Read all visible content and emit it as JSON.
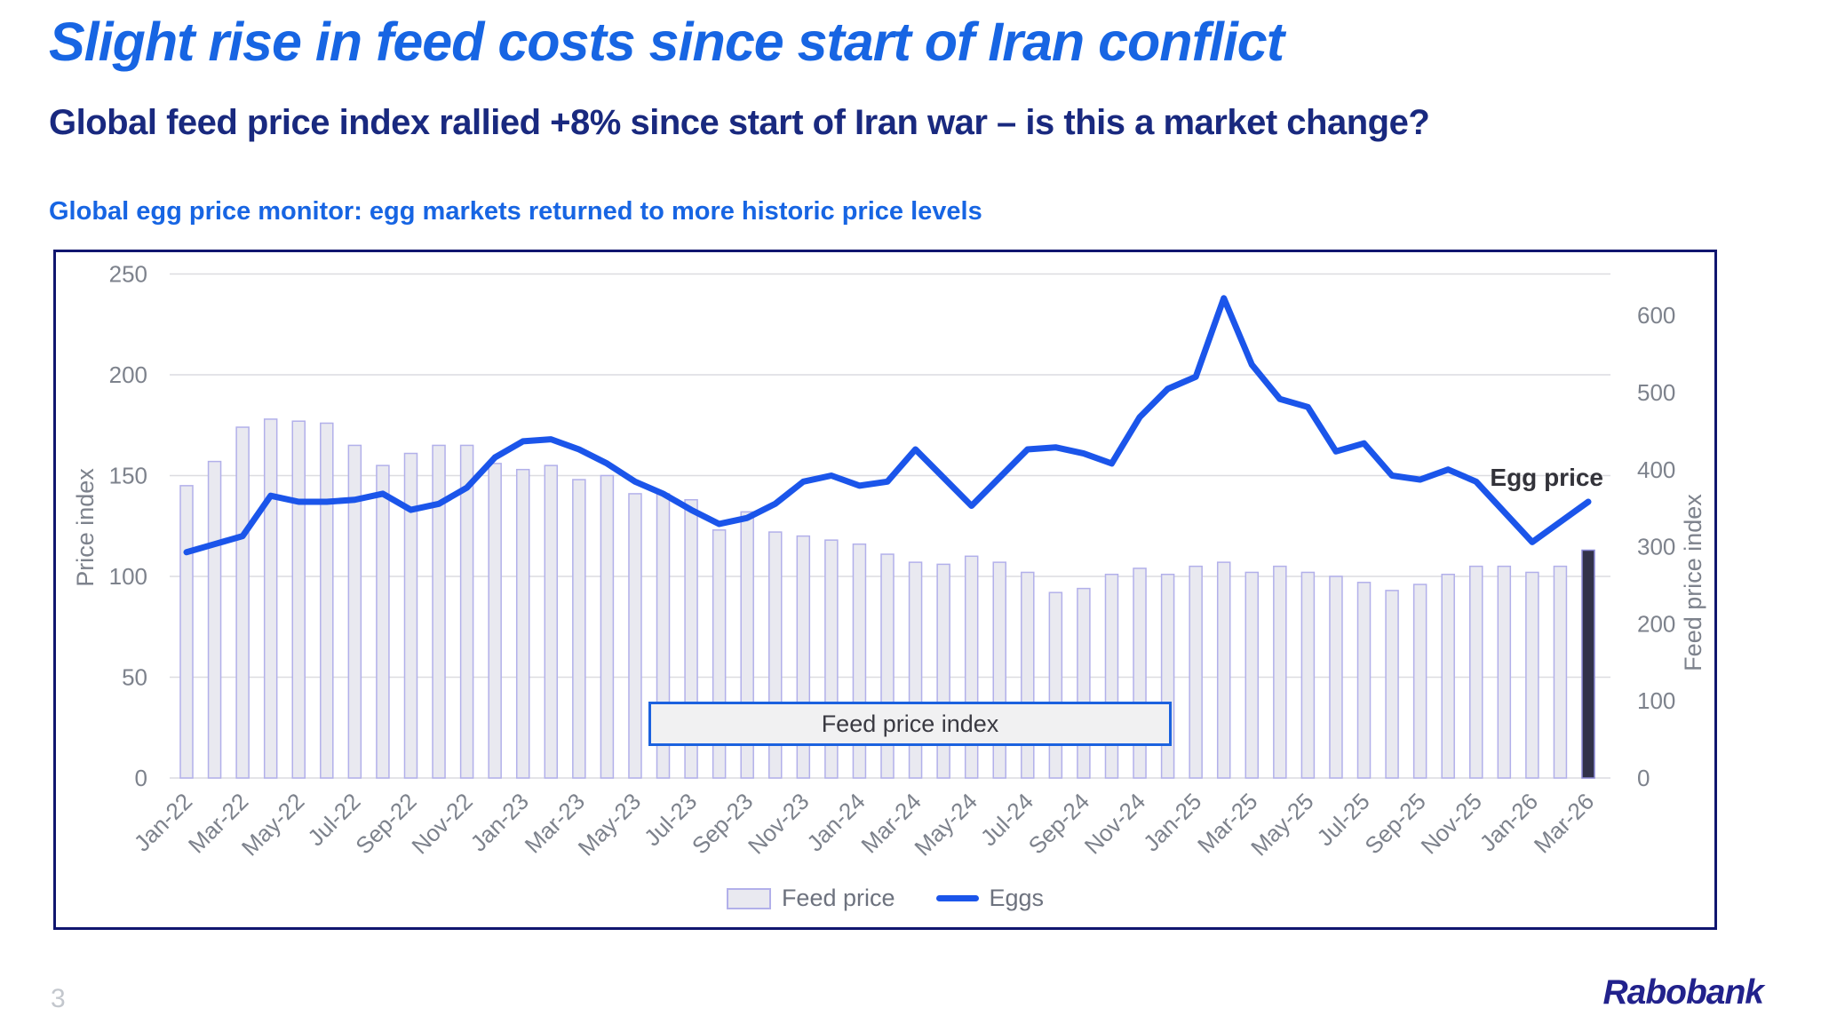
{
  "page": {
    "number": "3",
    "brand": "Rabobank"
  },
  "header": {
    "title": "Slight rise in feed costs since start of Iran conflict",
    "subtitle": "Global feed price index rallied +8% since start of Iran war – is this a market change?"
  },
  "chart_heading": "Global egg price monitor: egg markets returned to more historic price levels",
  "chart_data": {
    "type": "bar",
    "subtype": "bar+line combo, monthly",
    "categories": [
      "Jan-22",
      "Feb-22",
      "Mar-22",
      "Apr-22",
      "May-22",
      "Jun-22",
      "Jul-22",
      "Aug-22",
      "Sep-22",
      "Oct-22",
      "Nov-22",
      "Dec-22",
      "Jan-23",
      "Feb-23",
      "Mar-23",
      "Apr-23",
      "May-23",
      "Jun-23",
      "Jul-23",
      "Aug-23",
      "Sep-23",
      "Oct-23",
      "Nov-23",
      "Dec-23",
      "Jan-24",
      "Feb-24",
      "Mar-24",
      "Apr-24",
      "May-24",
      "Jun-24",
      "Jul-24",
      "Aug-24",
      "Sep-24",
      "Oct-24",
      "Nov-24",
      "Dec-24",
      "Jan-25",
      "Feb-25",
      "Mar-25",
      "Apr-25",
      "May-25",
      "Jun-25",
      "Jul-25",
      "Aug-25",
      "Sep-25",
      "Oct-25",
      "Nov-25",
      "Dec-25",
      "Jan-26",
      "Feb-26",
      "Mar-26"
    ],
    "x_ticks_every": 2,
    "series": [
      {
        "name": "Feed price",
        "type": "bar",
        "value_axis": "left (Price index)",
        "values": [
          145,
          157,
          174,
          178,
          177,
          176,
          165,
          155,
          161,
          165,
          165,
          156,
          153,
          155,
          148,
          150,
          141,
          141,
          138,
          123,
          132,
          122,
          120,
          118,
          116,
          111,
          107,
          106,
          110,
          107,
          102,
          92,
          94,
          101,
          104,
          101,
          105,
          107,
          102,
          105,
          102,
          100,
          97,
          93,
          96,
          101,
          105,
          105,
          102,
          105,
          113
        ]
      },
      {
        "name": "Eggs",
        "type": "line",
        "value_axis": "left (Price index)",
        "values": [
          112,
          116,
          120,
          140,
          137,
          137,
          138,
          141,
          133,
          136,
          144,
          159,
          167,
          168,
          163,
          156,
          147,
          141,
          133,
          126,
          129,
          136,
          147,
          150,
          145,
          147,
          163,
          149,
          135,
          149,
          163,
          164,
          161,
          156,
          179,
          193,
          199,
          238,
          205,
          188,
          184,
          162,
          166,
          150,
          148,
          153,
          147,
          132,
          117,
          127,
          137
        ]
      }
    ],
    "left_axis": {
      "label": "Price index",
      "min": 0,
      "max": 250,
      "tick_step": 50,
      "ticks": [
        "0",
        "50",
        "100",
        "150",
        "200",
        "250"
      ]
    },
    "right_axis": {
      "label": "Feed price index",
      "min": 0,
      "max": 600,
      "tick_step": 100,
      "ticks": [
        "0",
        "100",
        "200",
        "300",
        "400",
        "500",
        "600"
      ]
    },
    "grid": "horizontal, left-axis steps",
    "legend_position": "bottom-center",
    "legend": [
      {
        "label": "Feed price",
        "swatch": "bar"
      },
      {
        "label": "Eggs",
        "swatch": "line"
      }
    ],
    "annotations": [
      {
        "text": "Feed price index",
        "kind": "box-label over bars"
      },
      {
        "text": "Egg price",
        "kind": "text-label near line, right side"
      }
    ],
    "highlight_last_bar": "Mar-26 bar drawn dark navy",
    "colors": {
      "title_blue": "#1765E3",
      "subtitle_navy": "#19297F",
      "chart_border_navy": "#10166F",
      "bar_fill": "#E9E9F0",
      "bar_stroke": "#B2B0EA",
      "last_bar_fill": "#32324A",
      "last_bar_stroke": "#8B89D6",
      "line_blue": "#1B55EA",
      "gridline": "#DCDCE0",
      "axis_text": "#7D828C",
      "annotation_text": "#3A3A42",
      "annotation_box_fill": "#F1F1F2",
      "annotation_box_border": "#1C62DF",
      "legend_text": "#6D727E",
      "page_number_gray": "#C3C7CD",
      "brand_navy": "#22228C"
    }
  }
}
